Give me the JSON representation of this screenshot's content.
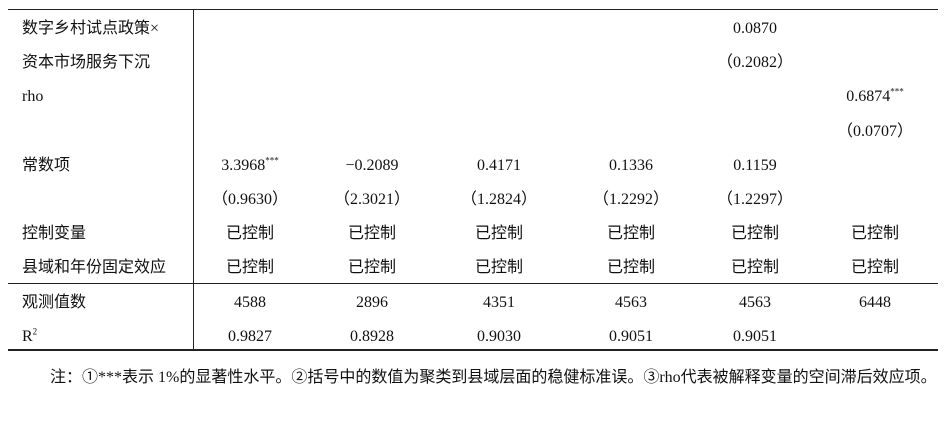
{
  "table": {
    "rows": [
      {
        "label": "数字乡村试点政策×",
        "cells": [
          null,
          null,
          null,
          null,
          "0.0870",
          null
        ]
      },
      {
        "label": "资本市场服务下沉",
        "cells": [
          null,
          null,
          null,
          null,
          "（0.2082）",
          null
        ]
      },
      {
        "label": "rho",
        "cells": [
          null,
          null,
          null,
          null,
          null,
          {
            "text": "0.6874",
            "sup": "***"
          }
        ]
      },
      {
        "label": null,
        "cells": [
          null,
          null,
          null,
          null,
          null,
          "（0.0707）"
        ]
      },
      {
        "label": "常数项",
        "cells": [
          {
            "text": "3.3968",
            "sup": "***"
          },
          "−0.2089",
          "0.4171",
          "0.1336",
          "0.1159",
          null
        ]
      },
      {
        "label": null,
        "cells": [
          "（0.9630）",
          "（2.3021）",
          "（1.2824）",
          "（1.2292）",
          "（1.2297）",
          null
        ]
      },
      {
        "label": "控制变量",
        "cells": [
          "已控制",
          "已控制",
          "已控制",
          "已控制",
          "已控制",
          "已控制"
        ]
      },
      {
        "label": "县域和年份固定效应",
        "cells": [
          "已控制",
          "已控制",
          "已控制",
          "已控制",
          "已控制",
          "已控制"
        ]
      },
      {
        "label": "观测值数",
        "cells": [
          "4588",
          "2896",
          "4351",
          "4563",
          "4563",
          "6448"
        ]
      },
      {
        "label": {
          "text": "R",
          "sup": "2"
        },
        "cells": [
          "0.9827",
          "0.8928",
          "0.9030",
          "0.9051",
          "0.9051",
          null
        ]
      }
    ]
  },
  "note": "注：①***表示 1%的显著性水平。②括号中的数值为聚类到县域层面的稳健标准误。③rho代表被解释变量的空间滞后效应项。"
}
